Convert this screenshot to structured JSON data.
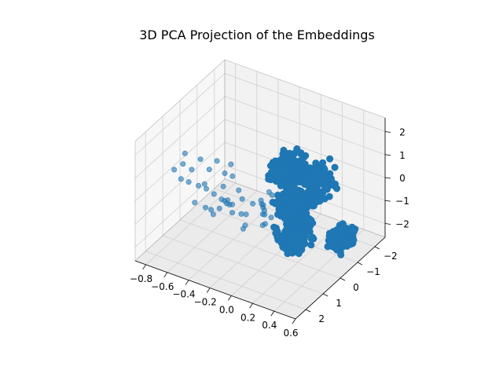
{
  "chart_data": {
    "type": "scatter",
    "projection": "3d",
    "title": "3D PCA Projection of the Embeddings",
    "xlabel": "",
    "ylabel": "",
    "zlabel": "",
    "grid": true,
    "legend": "none",
    "series_color": "#1f77b4",
    "pane_color": "#f2f2f2",
    "x_ticks": [
      -0.8,
      -0.6,
      -0.4,
      -0.2,
      0.0,
      0.2,
      0.4,
      0.6
    ],
    "x_tick_labels": [
      "−0.8",
      "−0.6",
      "−0.4",
      "−0.2",
      "0.0",
      "0.2",
      "0.4",
      "0.6"
    ],
    "y_ticks": [
      -2,
      -1,
      0,
      1,
      2
    ],
    "y_tick_labels": [
      "−2",
      "−1",
      "0",
      "1",
      "2"
    ],
    "z_ticks": [
      -2,
      -1,
      0,
      1,
      2
    ],
    "z_tick_labels": [
      "−2",
      "−1",
      "0",
      "1",
      "2"
    ],
    "xlim": [
      -0.9,
      0.6
    ],
    "ylim": [
      -2.6,
      2.6
    ],
    "zlim": [
      -2.6,
      2.6
    ],
    "scatter_points": [
      [
        -0.4,
        -1.6,
        -2.0
      ],
      [
        -0.36,
        -1.4,
        -1.95
      ],
      [
        -0.32,
        -1.3,
        -2.1
      ],
      [
        -0.3,
        -1.1,
        -1.8
      ],
      [
        -0.27,
        -0.9,
        -1.9
      ],
      [
        -0.24,
        -1.2,
        -2.2
      ],
      [
        -0.22,
        -0.7,
        -1.7
      ],
      [
        -0.19,
        -0.4,
        -1.9
      ],
      [
        -0.34,
        -1.7,
        -1.6
      ],
      [
        -0.28,
        -1.5,
        -1.5
      ],
      [
        -0.25,
        -0.8,
        -1.4
      ],
      [
        -0.2,
        -0.6,
        -2.0
      ],
      [
        -0.38,
        -1.0,
        -1.7
      ],
      [
        -0.33,
        -0.3,
        -1.6
      ],
      [
        -0.29,
        0.0,
        -1.8
      ],
      [
        -0.26,
        0.3,
        -1.7
      ],
      [
        -0.6,
        2.2,
        1.6
      ],
      [
        -0.55,
        2.0,
        1.8
      ],
      [
        -0.5,
        1.8,
        1.5
      ],
      [
        -0.48,
        2.1,
        1.2
      ],
      [
        -0.45,
        1.6,
        1.9
      ],
      [
        -0.42,
        1.9,
        1.0
      ],
      [
        -0.4,
        1.4,
        1.4
      ],
      [
        -0.38,
        1.7,
        0.8
      ],
      [
        -0.36,
        1.2,
        1.7
      ],
      [
        -0.34,
        1.5,
        0.5
      ],
      [
        -0.32,
        1.0,
        1.1
      ],
      [
        -0.3,
        1.3,
        0.2
      ],
      [
        -0.28,
        0.8,
        0.9
      ],
      [
        -0.26,
        1.1,
        -0.1
      ],
      [
        -0.58,
        1.7,
        2.0
      ],
      [
        -0.52,
        2.3,
        1.4
      ],
      [
        -0.46,
        1.3,
        0.6
      ],
      [
        -0.44,
        2.0,
        0.3
      ],
      [
        -0.35,
        0.9,
        0.4
      ],
      [
        -0.33,
        1.6,
        -0.3
      ],
      [
        -0.31,
        0.7,
        1.3
      ],
      [
        -0.27,
        0.5,
        0.1
      ],
      [
        -0.25,
        1.0,
        -0.5
      ],
      [
        -0.23,
        0.6,
        -0.8
      ],
      [
        -0.5,
        1.0,
        -0.7
      ],
      [
        -0.48,
        0.8,
        -0.9
      ],
      [
        -0.45,
        0.5,
        -1.0
      ],
      [
        -0.43,
        0.2,
        -0.95
      ],
      [
        -0.41,
        0.0,
        -1.1
      ],
      [
        -0.39,
        0.4,
        -0.6
      ],
      [
        -0.37,
        0.7,
        -0.4
      ],
      [
        -0.35,
        -0.2,
        -0.9
      ]
    ],
    "dense_regions": [
      {
        "center": [
          0.1,
          0.0,
          1.4
        ],
        "size": [
          0.18,
          1.2,
          0.9
        ]
      },
      {
        "center": [
          0.3,
          -0.4,
          0.8
        ],
        "size": [
          0.2,
          1.4,
          1.4
        ]
      },
      {
        "center": [
          0.2,
          0.2,
          -1.2
        ],
        "size": [
          0.22,
          1.1,
          1.1
        ]
      },
      {
        "center": [
          -0.05,
          -1.2,
          -1.4
        ],
        "size": [
          0.2,
          1.0,
          1.0
        ]
      },
      {
        "center": [
          0.45,
          -1.0,
          -1.8
        ],
        "size": [
          0.14,
          0.9,
          0.7
        ]
      }
    ]
  }
}
